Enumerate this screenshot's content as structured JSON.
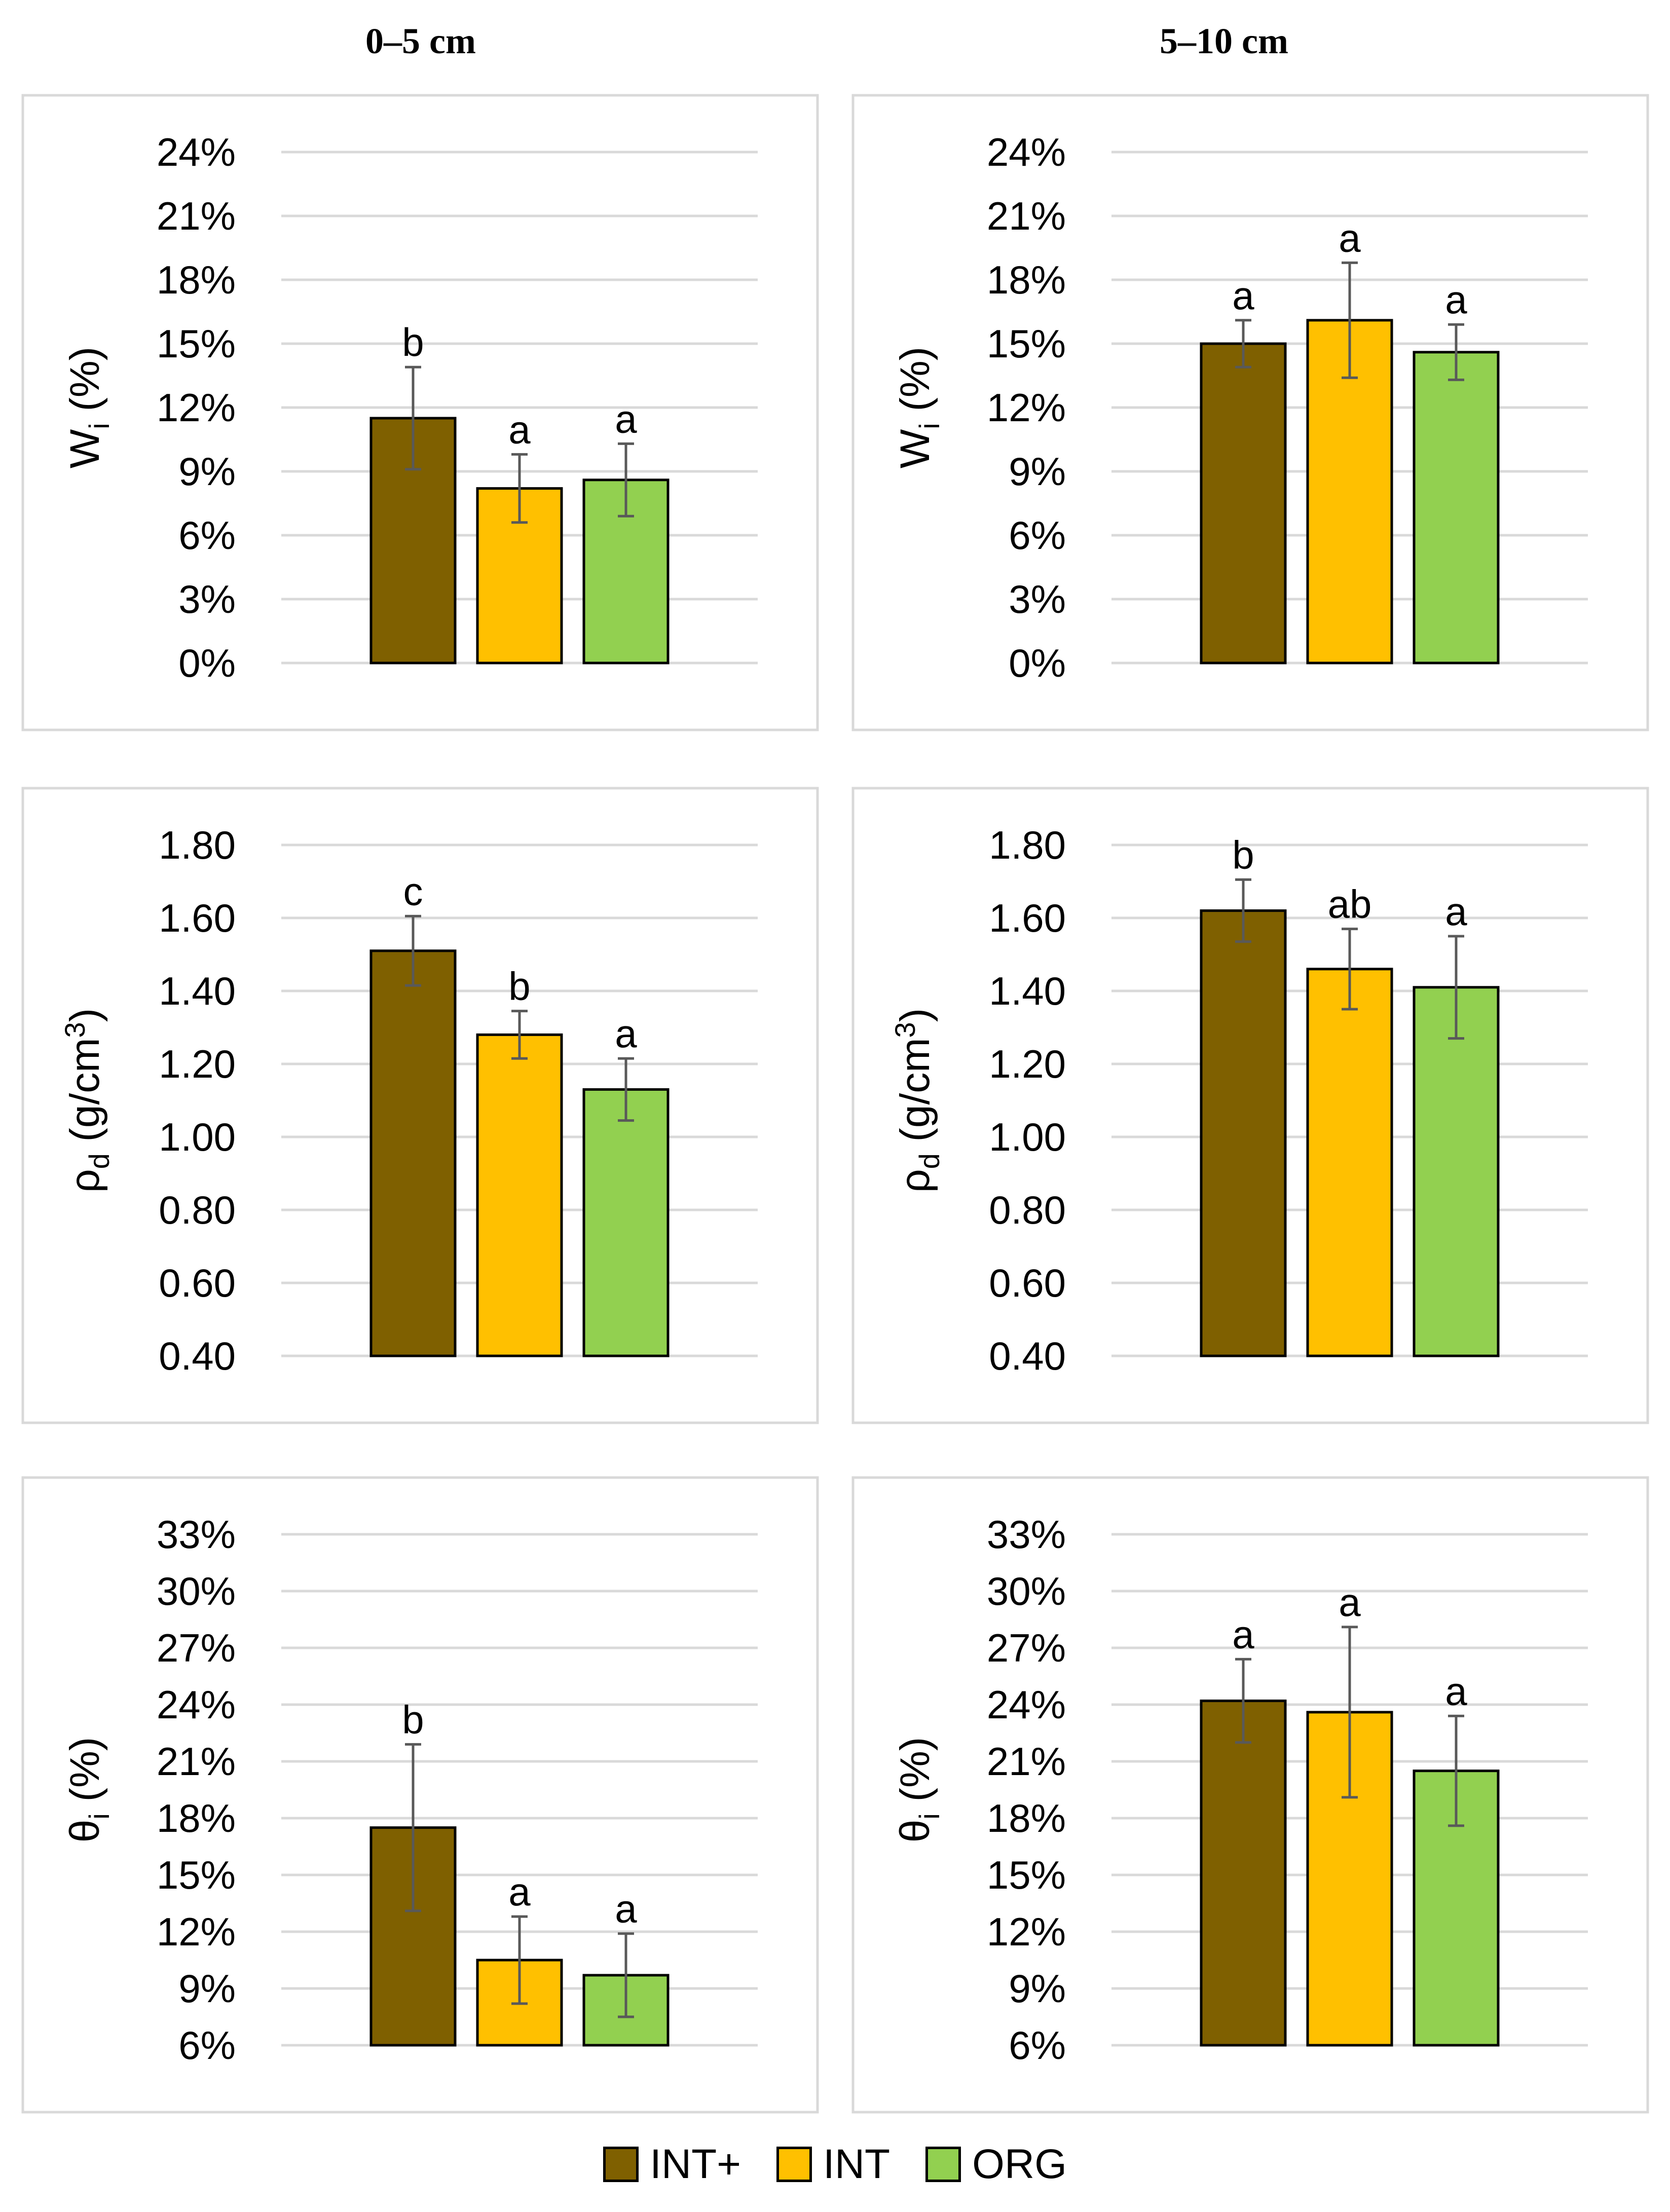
{
  "column_titles": [
    "0–5 cm",
    "5–10 cm"
  ],
  "legend": [
    {
      "label": "INT+",
      "color": "#7f6000"
    },
    {
      "label": "INT",
      "color": "#ffc000"
    },
    {
      "label": "ORG",
      "color": "#92d050"
    }
  ],
  "chart_data": [
    {
      "type": "bar",
      "title": "0–5 cm",
      "ylabel_main": "W",
      "ylabel_sub": "i",
      "ylabel_sup": "",
      "ylabel_tail": " (%)",
      "categories": [
        "INT+",
        "INT",
        "ORG"
      ],
      "values": [
        11.5,
        8.2,
        8.6
      ],
      "errors": [
        2.4,
        1.6,
        1.7
      ],
      "letters": [
        "b",
        "a",
        "a"
      ],
      "ylim": [
        0,
        24
      ],
      "ticks": [
        0,
        3,
        6,
        9,
        12,
        15,
        18,
        21,
        24
      ],
      "tick_labels": [
        "0%",
        "3%",
        "6%",
        "9%",
        "12%",
        "15%",
        "18%",
        "21%",
        "24%"
      ]
    },
    {
      "type": "bar",
      "title": "5–10 cm",
      "ylabel_main": "W",
      "ylabel_sub": "i",
      "ylabel_sup": "",
      "ylabel_tail": " (%)",
      "categories": [
        "INT+",
        "INT",
        "ORG"
      ],
      "values": [
        15.0,
        16.1,
        14.6
      ],
      "errors": [
        1.1,
        2.7,
        1.3
      ],
      "letters": [
        "a",
        "a",
        "a"
      ],
      "ylim": [
        0,
        24
      ],
      "ticks": [
        0,
        3,
        6,
        9,
        12,
        15,
        18,
        21,
        24
      ],
      "tick_labels": [
        "0%",
        "3%",
        "6%",
        "9%",
        "12%",
        "15%",
        "18%",
        "21%",
        "24%"
      ]
    },
    {
      "type": "bar",
      "title": "0–5 cm",
      "ylabel_main": "ρ",
      "ylabel_sub": "d",
      "ylabel_sup": "3",
      "ylabel_tail": " (g/cm",
      "categories": [
        "INT+",
        "INT",
        "ORG"
      ],
      "values": [
        1.51,
        1.28,
        1.13
      ],
      "errors": [
        0.095,
        0.065,
        0.085
      ],
      "letters": [
        "c",
        "b",
        "a"
      ],
      "ylim": [
        0.4,
        1.8
      ],
      "ticks": [
        0.4,
        0.6,
        0.8,
        1.0,
        1.2,
        1.4,
        1.6,
        1.8
      ],
      "tick_labels": [
        "0.40",
        "0.60",
        "0.80",
        "1.00",
        "1.20",
        "1.40",
        "1.60",
        "1.80"
      ]
    },
    {
      "type": "bar",
      "title": "5–10 cm",
      "ylabel_main": "ρ",
      "ylabel_sub": "d",
      "ylabel_sup": "3",
      "ylabel_tail": " (g/cm",
      "categories": [
        "INT+",
        "INT",
        "ORG"
      ],
      "values": [
        1.62,
        1.46,
        1.41
      ],
      "errors": [
        0.085,
        0.11,
        0.14
      ],
      "letters": [
        "b",
        "ab",
        "a"
      ],
      "ylim": [
        0.4,
        1.8
      ],
      "ticks": [
        0.4,
        0.6,
        0.8,
        1.0,
        1.2,
        1.4,
        1.6,
        1.8
      ],
      "tick_labels": [
        "0.40",
        "0.60",
        "0.80",
        "1.00",
        "1.20",
        "1.40",
        "1.60",
        "1.80"
      ]
    },
    {
      "type": "bar",
      "title": "0–5 cm",
      "ylabel_main": "θ",
      "ylabel_sub": "i",
      "ylabel_sup": "",
      "ylabel_tail": " (%)",
      "categories": [
        "INT+",
        "INT",
        "ORG"
      ],
      "values": [
        17.5,
        10.5,
        9.7
      ],
      "errors": [
        4.4,
        2.3,
        2.2
      ],
      "letters": [
        "b",
        "a",
        "a"
      ],
      "ylim": [
        6,
        33
      ],
      "ticks": [
        6,
        9,
        12,
        15,
        18,
        21,
        24,
        27,
        30,
        33
      ],
      "tick_labels": [
        "6%",
        "9%",
        "12%",
        "15%",
        "18%",
        "21%",
        "24%",
        "27%",
        "30%",
        "33%"
      ]
    },
    {
      "type": "bar",
      "title": "5–10 cm",
      "ylabel_main": "θ",
      "ylabel_sub": "i",
      "ylabel_sup": "",
      "ylabel_tail": " (%)",
      "categories": [
        "INT+",
        "INT",
        "ORG"
      ],
      "values": [
        24.2,
        23.6,
        20.5
      ],
      "errors": [
        2.2,
        4.5,
        2.9
      ],
      "letters": [
        "a",
        "a",
        "a"
      ],
      "ylim": [
        6,
        33
      ],
      "ticks": [
        6,
        9,
        12,
        15,
        18,
        21,
        24,
        27,
        30,
        33
      ],
      "tick_labels": [
        "6%",
        "9%",
        "12%",
        "15%",
        "18%",
        "21%",
        "24%",
        "27%",
        "30%",
        "33%"
      ]
    }
  ]
}
